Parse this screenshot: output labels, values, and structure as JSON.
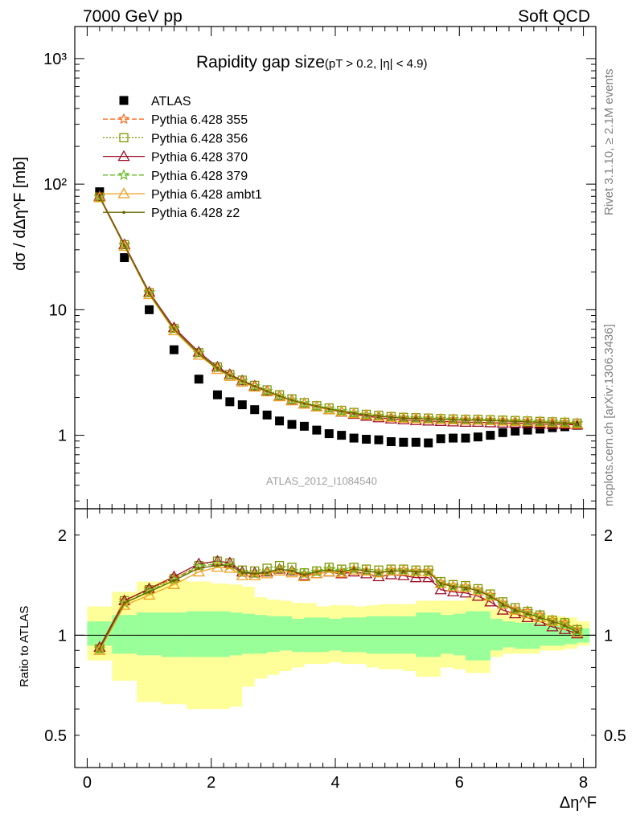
{
  "header": {
    "left": "7000 GeV pp",
    "right": "Soft QCD"
  },
  "side_texts": {
    "rivet": "Rivet 3.1.10, ≥ 2.1M events",
    "mcplots": "mcplots.cern.ch [arXiv:1306.3436]"
  },
  "colors": {
    "data": "#000000",
    "p355": "#ff6a1a",
    "p356": "#7a9a00",
    "p370": "#a0102a",
    "p379": "#66bb22",
    "ambt1": "#f0a020",
    "z2": "#666600",
    "band_inner": "#99ff99",
    "band_outer": "#ffff99"
  },
  "chart_data": [
    {
      "type": "scatter",
      "title": "Rapidity gap size",
      "title_cut": "(pT > 0.2, |η| < 4.9)",
      "analysis_id": "ATLAS_2012_I1084540",
      "ylabel": "dσ / dΔη^F [mb]",
      "yscale": "log",
      "ylim": [
        0.26,
        1800
      ],
      "xlim": [
        -0.2,
        8.2
      ],
      "y_tick_labels": [
        "1",
        "10",
        "10²",
        "10³"
      ],
      "x": [
        0.2,
        0.6,
        1.0,
        1.4,
        1.8,
        2.1,
        2.3,
        2.5,
        2.7,
        2.9,
        3.1,
        3.3,
        3.5,
        3.7,
        3.9,
        4.1,
        4.3,
        4.5,
        4.7,
        4.9,
        5.1,
        5.3,
        5.5,
        5.7,
        5.9,
        6.1,
        6.3,
        6.5,
        6.7,
        6.9,
        7.1,
        7.3,
        7.5,
        7.7,
        7.9
      ],
      "series": [
        {
          "name": "ATLAS",
          "key": "data",
          "marker": "square",
          "values": [
            87,
            26,
            10,
            4.8,
            2.8,
            2.1,
            1.85,
            1.75,
            1.6,
            1.45,
            1.3,
            1.22,
            1.18,
            1.1,
            1.03,
            1.0,
            0.95,
            0.93,
            0.92,
            0.89,
            0.88,
            0.88,
            0.87,
            0.94,
            0.95,
            0.95,
            0.97,
            1.0,
            1.05,
            1.08,
            1.1,
            1.12,
            1.15,
            1.17,
            1.2
          ]
        },
        {
          "name": "Pythia 6.428 355",
          "key": "p355",
          "marker": "star",
          "dash": "6,3",
          "values": [
            80,
            33,
            13.8,
            7.1,
            4.5,
            3.45,
            3.0,
            2.7,
            2.45,
            2.25,
            2.05,
            1.9,
            1.8,
            1.7,
            1.63,
            1.55,
            1.5,
            1.45,
            1.42,
            1.4,
            1.38,
            1.37,
            1.36,
            1.35,
            1.34,
            1.33,
            1.33,
            1.32,
            1.31,
            1.3,
            1.3,
            1.29,
            1.28,
            1.27,
            1.25
          ]
        },
        {
          "name": "Pythia 6.428 356",
          "key": "p356",
          "marker": "open-square",
          "dash": "2,2",
          "values": [
            79,
            33,
            13.7,
            7.1,
            4.55,
            3.5,
            3.05,
            2.75,
            2.5,
            2.3,
            2.1,
            1.95,
            1.82,
            1.72,
            1.65,
            1.58,
            1.52,
            1.47,
            1.44,
            1.41,
            1.39,
            1.38,
            1.37,
            1.36,
            1.35,
            1.34,
            1.34,
            1.33,
            1.32,
            1.31,
            1.3,
            1.29,
            1.28,
            1.27,
            1.25
          ]
        },
        {
          "name": "Pythia 6.428 370",
          "key": "p370",
          "marker": "triangle",
          "dash": "",
          "values": [
            80,
            33,
            13.8,
            7.2,
            4.6,
            3.5,
            3.05,
            2.72,
            2.47,
            2.25,
            2.05,
            1.9,
            1.78,
            1.68,
            1.6,
            1.53,
            1.47,
            1.42,
            1.38,
            1.35,
            1.33,
            1.31,
            1.3,
            1.29,
            1.28,
            1.27,
            1.27,
            1.26,
            1.25,
            1.25,
            1.24,
            1.23,
            1.22,
            1.22,
            1.21
          ]
        },
        {
          "name": "Pythia 6.428 379",
          "key": "p379",
          "marker": "star",
          "dash": "6,3",
          "values": [
            79,
            32.5,
            13.6,
            7.0,
            4.5,
            3.45,
            3.0,
            2.7,
            2.45,
            2.25,
            2.05,
            1.9,
            1.8,
            1.7,
            1.63,
            1.56,
            1.5,
            1.45,
            1.42,
            1.39,
            1.37,
            1.36,
            1.35,
            1.34,
            1.33,
            1.32,
            1.32,
            1.31,
            1.3,
            1.29,
            1.29,
            1.28,
            1.27,
            1.26,
            1.24
          ]
        },
        {
          "name": "Pythia 6.428 ambt1",
          "key": "ambt1",
          "marker": "triangle",
          "dash": "",
          "values": [
            78,
            32,
            13.2,
            6.8,
            4.35,
            3.35,
            2.95,
            2.65,
            2.42,
            2.22,
            2.03,
            1.88,
            1.77,
            1.68,
            1.6,
            1.54,
            1.49,
            1.45,
            1.42,
            1.39,
            1.37,
            1.36,
            1.35,
            1.34,
            1.33,
            1.32,
            1.32,
            1.31,
            1.3,
            1.29,
            1.28,
            1.27,
            1.26,
            1.25,
            1.23
          ]
        },
        {
          "name": "Pythia 6.428 z2",
          "key": "z2",
          "marker": "dot",
          "dash": "",
          "values": [
            79,
            32.5,
            13.5,
            7.0,
            4.45,
            3.4,
            3.0,
            2.7,
            2.45,
            2.24,
            2.05,
            1.9,
            1.79,
            1.7,
            1.62,
            1.55,
            1.5,
            1.45,
            1.42,
            1.39,
            1.37,
            1.36,
            1.35,
            1.34,
            1.33,
            1.32,
            1.32,
            1.31,
            1.3,
            1.29,
            1.28,
            1.27,
            1.26,
            1.25,
            1.23
          ]
        }
      ]
    },
    {
      "type": "line",
      "ylabel": "Ratio to ATLAS",
      "xlabel": "Δη^F",
      "yscale": "log",
      "ylim": [
        0.4,
        2.4
      ],
      "xlim": [
        -0.2,
        8.2
      ],
      "y_tick_labels": [
        "0.5",
        "1",
        "2"
      ],
      "x_tick_labels": [
        "0",
        "2",
        "4",
        "6",
        "8"
      ],
      "x": [
        0.2,
        0.6,
        1.0,
        1.4,
        1.8,
        2.1,
        2.3,
        2.5,
        2.7,
        2.9,
        3.1,
        3.3,
        3.5,
        3.7,
        3.9,
        4.1,
        4.3,
        4.5,
        4.7,
        4.9,
        5.1,
        5.3,
        5.5,
        5.7,
        5.9,
        6.1,
        6.3,
        6.5,
        6.7,
        6.9,
        7.1,
        7.3,
        7.5,
        7.7,
        7.9
      ],
      "band_inner": {
        "lo": [
          0.93,
          0.88,
          0.87,
          0.86,
          0.86,
          0.86,
          0.87,
          0.88,
          0.88,
          0.89,
          0.9,
          0.9,
          0.89,
          0.89,
          0.9,
          0.9,
          0.89,
          0.89,
          0.88,
          0.88,
          0.89,
          0.88,
          0.86,
          0.88,
          0.88,
          0.87,
          0.84,
          0.9,
          0.92,
          0.92,
          0.91,
          0.93,
          0.93,
          0.94,
          0.95
        ],
        "hi": [
          1.1,
          1.15,
          1.17,
          1.17,
          1.18,
          1.18,
          1.17,
          1.16,
          1.15,
          1.14,
          1.14,
          1.12,
          1.12,
          1.13,
          1.12,
          1.12,
          1.13,
          1.13,
          1.14,
          1.14,
          1.13,
          1.14,
          1.17,
          1.14,
          1.15,
          1.16,
          1.18,
          1.12,
          1.1,
          1.09,
          1.09,
          1.08,
          1.07,
          1.06,
          1.05
        ]
      },
      "band_outer": {
        "lo": [
          0.84,
          0.73,
          0.63,
          0.62,
          0.6,
          0.6,
          0.61,
          0.7,
          0.74,
          0.76,
          0.78,
          0.8,
          0.82,
          0.82,
          0.83,
          0.83,
          0.82,
          0.82,
          0.8,
          0.79,
          0.79,
          0.78,
          0.75,
          0.8,
          0.8,
          0.79,
          0.77,
          0.86,
          0.88,
          0.88,
          0.88,
          0.9,
          0.9,
          0.91,
          0.93
        ],
        "hi": [
          1.22,
          1.35,
          1.45,
          1.47,
          1.45,
          1.43,
          1.42,
          1.4,
          1.3,
          1.28,
          1.27,
          1.25,
          1.25,
          1.22,
          1.22,
          1.23,
          1.22,
          1.22,
          1.23,
          1.24,
          1.23,
          1.24,
          1.27,
          1.24,
          1.27,
          1.27,
          1.3,
          1.2,
          1.18,
          1.17,
          1.16,
          1.15,
          1.14,
          1.13,
          1.1
        ]
      },
      "series": [
        {
          "key": "p355",
          "values": [
            0.92,
            1.27,
            1.38,
            1.48,
            1.61,
            1.64,
            1.62,
            1.54,
            1.53,
            1.55,
            1.58,
            1.56,
            1.53,
            1.55,
            1.58,
            1.55,
            1.58,
            1.56,
            1.54,
            1.57,
            1.57,
            1.56,
            1.56,
            1.44,
            1.41,
            1.4,
            1.37,
            1.32,
            1.25,
            1.2,
            1.18,
            1.15,
            1.11,
            1.09,
            1.04
          ]
        },
        {
          "key": "p356",
          "values": [
            0.91,
            1.27,
            1.37,
            1.48,
            1.62,
            1.67,
            1.65,
            1.57,
            1.56,
            1.59,
            1.62,
            1.6,
            1.54,
            1.56,
            1.6,
            1.58,
            1.6,
            1.58,
            1.57,
            1.58,
            1.58,
            1.57,
            1.57,
            1.45,
            1.42,
            1.41,
            1.38,
            1.33,
            1.26,
            1.21,
            1.18,
            1.15,
            1.11,
            1.09,
            1.04
          ]
        },
        {
          "key": "p370",
          "values": [
            0.92,
            1.27,
            1.38,
            1.5,
            1.64,
            1.67,
            1.65,
            1.55,
            1.54,
            1.55,
            1.58,
            1.56,
            1.51,
            1.53,
            1.55,
            1.53,
            1.55,
            1.53,
            1.5,
            1.52,
            1.51,
            1.49,
            1.49,
            1.37,
            1.35,
            1.34,
            1.31,
            1.26,
            1.19,
            1.16,
            1.13,
            1.1,
            1.06,
            1.04,
            1.01
          ]
        },
        {
          "key": "p379",
          "values": [
            0.91,
            1.25,
            1.36,
            1.46,
            1.61,
            1.64,
            1.62,
            1.54,
            1.53,
            1.55,
            1.58,
            1.56,
            1.53,
            1.55,
            1.58,
            1.56,
            1.58,
            1.56,
            1.54,
            1.56,
            1.56,
            1.55,
            1.55,
            1.43,
            1.4,
            1.39,
            1.36,
            1.31,
            1.24,
            1.19,
            1.17,
            1.14,
            1.1,
            1.08,
            1.03
          ]
        },
        {
          "key": "ambt1",
          "values": [
            0.9,
            1.23,
            1.32,
            1.42,
            1.55,
            1.6,
            1.59,
            1.51,
            1.51,
            1.53,
            1.56,
            1.54,
            1.5,
            1.53,
            1.55,
            1.54,
            1.57,
            1.56,
            1.54,
            1.56,
            1.56,
            1.55,
            1.55,
            1.43,
            1.4,
            1.39,
            1.36,
            1.31,
            1.24,
            1.19,
            1.16,
            1.13,
            1.1,
            1.07,
            1.02
          ]
        },
        {
          "key": "z2",
          "values": [
            0.91,
            1.25,
            1.35,
            1.46,
            1.59,
            1.62,
            1.62,
            1.54,
            1.53,
            1.54,
            1.58,
            1.56,
            1.52,
            1.55,
            1.57,
            1.55,
            1.58,
            1.56,
            1.54,
            1.56,
            1.56,
            1.55,
            1.55,
            1.43,
            1.4,
            1.39,
            1.36,
            1.31,
            1.24,
            1.19,
            1.16,
            1.13,
            1.1,
            1.07,
            1.02
          ]
        }
      ]
    }
  ]
}
